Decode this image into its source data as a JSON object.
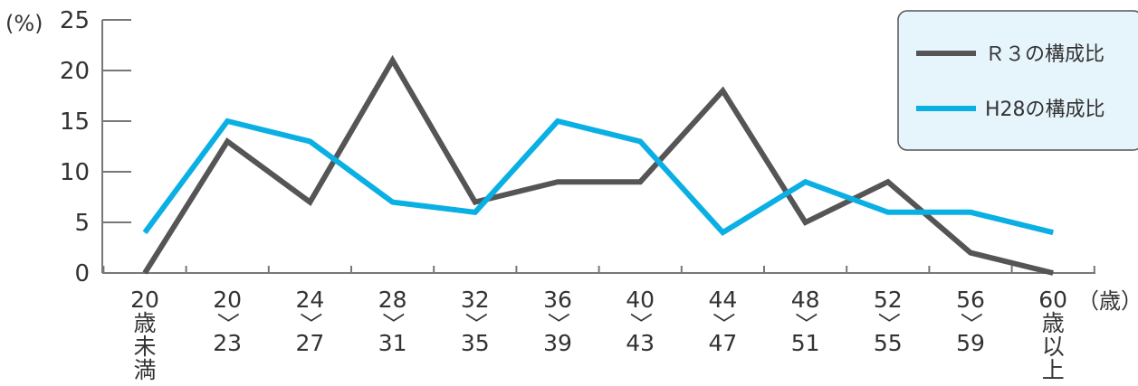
{
  "chart_data": {
    "type": "line",
    "y_unit": "(%)",
    "x_unit": "（歳）",
    "ylim": [
      0,
      25
    ],
    "yticks": [
      "0",
      "5",
      "10",
      "15",
      "20",
      "25"
    ],
    "categories": [
      [
        "20",
        "歳",
        "未",
        "満"
      ],
      [
        "20",
        "〉",
        "23"
      ],
      [
        "24",
        "〉",
        "27"
      ],
      [
        "28",
        "〉",
        "31"
      ],
      [
        "32",
        "〉",
        "35"
      ],
      [
        "36",
        "〉",
        "39"
      ],
      [
        "40",
        "〉",
        "43"
      ],
      [
        "44",
        "〉",
        "47"
      ],
      [
        "48",
        "〉",
        "51"
      ],
      [
        "52",
        "〉",
        "55"
      ],
      [
        "56",
        "〉",
        "59"
      ],
      [
        "60",
        "歳",
        "以",
        "上"
      ]
    ],
    "series": [
      {
        "name": "Ｒ３の構成比",
        "color": "#555555",
        "values": [
          0,
          13,
          7,
          21,
          7,
          9,
          9,
          18,
          5,
          9,
          2,
          0
        ]
      },
      {
        "name": "H28の構成比",
        "color": "#0aafe4",
        "values": [
          4,
          15,
          13,
          7,
          6,
          15,
          13,
          4,
          9,
          6,
          6,
          4
        ]
      }
    ],
    "legend_position": "top-right",
    "grid": false
  }
}
